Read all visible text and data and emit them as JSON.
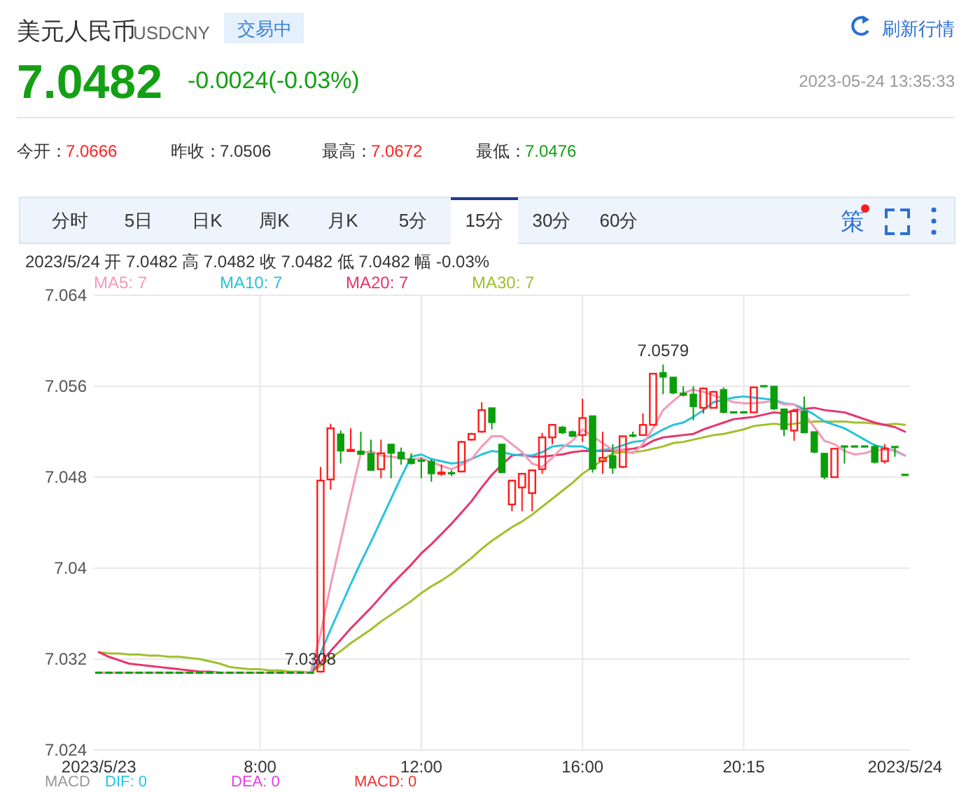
{
  "chart_data": {
    "type": "candlestick",
    "annotations": [
      "美元人民币",
      "USDCNY",
      "交易中",
      "刷新行情",
      "7.0482",
      "-0.0024(-0.03%)",
      "2023-05-24 13:35:33",
      "今开：",
      "7.0666",
      "昨收：",
      "7.0506",
      "最高：",
      "7.0672",
      "最低：",
      "7.0476",
      "分时",
      "5日",
      "日K",
      "周K",
      "月K",
      "5分",
      "15分",
      "30分",
      "60分",
      "策",
      "2023/5/24 开 7.0482 高 7.0482 收 7.0482 低 7.0482 幅 -0.03%",
      "MACD",
      "DIF: 0",
      "DEA: 0",
      "MACD: 0",
      {
        "text": "7.0579",
        "y": 7.0579
      },
      {
        "text": "7.0308",
        "y": 7.0308
      }
    ],
    "categories": [
      "2023/5/23",
      null,
      null,
      null,
      null,
      null,
      null,
      null,
      null,
      null,
      null,
      null,
      null,
      null,
      null,
      null,
      "8:00",
      null,
      null,
      null,
      null,
      null,
      null,
      null,
      null,
      null,
      null,
      null,
      null,
      null,
      null,
      null,
      "12:00",
      null,
      null,
      null,
      null,
      null,
      null,
      null,
      null,
      null,
      null,
      null,
      null,
      null,
      null,
      null,
      "16:00",
      null,
      null,
      null,
      null,
      null,
      null,
      null,
      null,
      null,
      null,
      null,
      null,
      null,
      null,
      null,
      "20:15",
      null,
      null,
      null,
      null,
      null,
      null,
      null,
      null,
      null,
      null,
      null,
      null,
      null,
      null,
      null,
      "2023/5/24"
    ],
    "ohlc": [
      [
        7.0308,
        7.0308,
        7.0308,
        7.0308
      ],
      [
        7.0308,
        7.0308,
        7.0308,
        7.0308
      ],
      [
        7.0308,
        7.0308,
        7.0308,
        7.0308
      ],
      [
        7.0308,
        7.0308,
        7.0308,
        7.0308
      ],
      [
        7.0308,
        7.0308,
        7.0308,
        7.0308
      ],
      [
        7.0308,
        7.0308,
        7.0308,
        7.0308
      ],
      [
        7.0308,
        7.0308,
        7.0308,
        7.0308
      ],
      [
        7.0308,
        7.0308,
        7.0308,
        7.0308
      ],
      [
        7.0308,
        7.0308,
        7.0308,
        7.0308
      ],
      [
        7.0308,
        7.0308,
        7.0308,
        7.0308
      ],
      [
        7.0308,
        7.0308,
        7.0308,
        7.0308
      ],
      [
        7.0308,
        7.0308,
        7.0308,
        7.0308
      ],
      [
        7.0308,
        7.0308,
        7.0308,
        7.0308
      ],
      [
        7.0308,
        7.0308,
        7.0308,
        7.0308
      ],
      [
        7.0308,
        7.0308,
        7.0308,
        7.0308
      ],
      [
        7.0308,
        7.0308,
        7.0308,
        7.0308
      ],
      [
        7.0308,
        7.0308,
        7.0308,
        7.0308
      ],
      [
        7.0308,
        7.0308,
        7.0308,
        7.0308
      ],
      [
        7.0308,
        7.0308,
        7.0308,
        7.0308
      ],
      [
        7.0308,
        7.0308,
        7.0308,
        7.0308
      ],
      [
        7.0308,
        7.0308,
        7.0308,
        7.0308
      ],
      [
        7.0308,
        7.0308,
        7.0308,
        7.0308
      ],
      [
        7.0309,
        7.0489,
        7.0308,
        7.0477
      ],
      [
        7.0478,
        7.0527,
        7.0469,
        7.0523
      ],
      [
        7.0518,
        7.0521,
        7.0492,
        7.0503
      ],
      [
        7.0503,
        7.0523,
        7.0503,
        7.0504
      ],
      [
        7.0503,
        7.052,
        7.05,
        7.05
      ],
      [
        7.0501,
        7.0513,
        7.0486,
        7.0486
      ],
      [
        7.0487,
        7.0513,
        7.0479,
        7.0501
      ],
      [
        7.0509,
        7.0509,
        7.0479,
        7.0501
      ],
      [
        7.0502,
        7.0506,
        7.0491,
        7.0496
      ],
      [
        7.0496,
        7.0501,
        7.0491,
        7.0492
      ],
      [
        7.0495,
        7.0497,
        7.0479,
        7.0494
      ],
      [
        7.0494,
        7.0496,
        7.0476,
        7.0483
      ],
      [
        7.0483,
        7.0491,
        7.0481,
        7.0484
      ],
      [
        7.0484,
        7.0486,
        7.0481,
        7.0483
      ],
      [
        7.0485,
        7.0512,
        7.0484,
        7.0511
      ],
      [
        7.0513,
        7.0519,
        7.0512,
        7.0518
      ],
      [
        7.052,
        7.0546,
        7.0519,
        7.0539
      ],
      [
        7.0541,
        7.0541,
        7.0522,
        7.0528
      ],
      [
        7.0509,
        7.0509,
        7.0484,
        7.0484
      ],
      [
        7.0456,
        7.0477,
        7.045,
        7.0477
      ],
      [
        7.0471,
        7.0483,
        7.045,
        7.0483
      ],
      [
        7.0466,
        7.0486,
        7.045,
        7.0486
      ],
      [
        7.0487,
        7.0519,
        7.0483,
        7.0515
      ],
      [
        7.0515,
        7.0526,
        7.0509,
        7.0526
      ],
      [
        7.0524,
        7.0525,
        7.0518,
        7.0519
      ],
      [
        7.052,
        7.0521,
        7.0515,
        7.0516
      ],
      [
        7.0517,
        7.0549,
        7.0511,
        7.0532
      ],
      [
        7.0534,
        7.0534,
        7.0484,
        7.0487
      ],
      [
        7.0494,
        7.052,
        7.0483,
        7.0497
      ],
      [
        7.0499,
        7.0509,
        7.0483,
        7.0488
      ],
      [
        7.0489,
        7.0516,
        7.0488,
        7.0516
      ],
      [
        7.0517,
        7.052,
        7.0515,
        7.0516
      ],
      [
        7.0517,
        7.0536,
        7.0517,
        7.0526
      ],
      [
        7.0526,
        7.0571,
        7.0526,
        7.0571
      ],
      [
        7.0572,
        7.0579,
        7.0553,
        7.0568
      ],
      [
        7.0568,
        7.0568,
        7.0553,
        7.0554
      ],
      [
        7.0554,
        7.056,
        7.0551,
        7.0552
      ],
      [
        7.0553,
        7.056,
        7.053,
        7.0542
      ],
      [
        7.0541,
        7.0559,
        7.0536,
        7.0558
      ],
      [
        7.0541,
        7.0556,
        7.0541,
        7.0555
      ],
      [
        7.0557,
        7.0559,
        7.0536,
        7.0537
      ],
      [
        7.0537,
        7.0537,
        7.0537,
        7.0537
      ],
      [
        7.0537,
        7.0537,
        7.0537,
        7.0537
      ],
      [
        7.0537,
        7.0559,
        7.0537,
        7.0559
      ],
      [
        7.056,
        7.056,
        7.056,
        7.056
      ],
      [
        7.056,
        7.056,
        7.0539,
        7.054
      ],
      [
        7.054,
        7.054,
        7.0516,
        7.0522
      ],
      [
        7.0521,
        7.054,
        7.0512,
        7.0538
      ],
      [
        7.0538,
        7.0551,
        7.0519,
        7.0519
      ],
      [
        7.052,
        7.052,
        7.0501,
        7.0502
      ],
      [
        7.0501,
        7.0501,
        7.0478,
        7.048
      ],
      [
        7.048,
        7.0505,
        7.048,
        7.0505
      ],
      [
        7.0507,
        7.0507,
        7.0492,
        7.0507
      ],
      [
        7.0507,
        7.0507,
        7.0507,
        7.0507
      ],
      [
        7.0507,
        7.0507,
        7.0507,
        7.0507
      ],
      [
        7.0507,
        7.0509,
        7.0492,
        7.0493
      ],
      [
        7.0494,
        7.0509,
        7.0492,
        7.0505
      ],
      [
        7.0507,
        7.0507,
        7.0498,
        7.0506
      ],
      [
        7.0482,
        7.0482,
        7.0482,
        7.0482
      ]
    ],
    "series": [
      {
        "name": "MA5: 7",
        "type": "line",
        "color": "#f59ab6",
        "values": [
          7.0308,
          7.0308,
          7.0308,
          7.0308,
          7.0308,
          7.0308,
          7.0308,
          7.0308,
          7.0308,
          7.0308,
          7.0308,
          7.0308,
          7.0308,
          7.0308,
          7.0308,
          7.0308,
          7.0308,
          7.0308,
          7.0308,
          7.0308,
          7.0308,
          7.0308,
          7.0342,
          7.0385,
          7.0424,
          7.0463,
          7.0501,
          7.0503,
          7.0499,
          7.0498,
          7.0497,
          7.0495,
          7.0497,
          7.0493,
          7.049,
          7.0487,
          7.0491,
          7.0496,
          7.0507,
          7.0516,
          7.0516,
          7.0509,
          7.0502,
          7.0492,
          7.0489,
          7.0497,
          7.0506,
          7.0512,
          7.0522,
          7.0516,
          7.051,
          7.0504,
          7.0504,
          7.0501,
          7.0509,
          7.0523,
          7.0539,
          7.0547,
          7.0554,
          7.0557,
          7.0555,
          7.0552,
          7.0549,
          7.0546,
          7.0545,
          7.0545,
          7.0546,
          7.0547,
          7.0544,
          7.0544,
          7.0536,
          7.0524,
          7.0512,
          7.0509,
          7.0503,
          7.05,
          7.0501,
          7.0504,
          7.0504,
          7.0504,
          7.0499
        ]
      },
      {
        "name": "MA10: 7",
        "type": "line",
        "color": "#26c3dc",
        "values": [
          null,
          null,
          null,
          null,
          null,
          null,
          null,
          null,
          null,
          null,
          null,
          null,
          null,
          null,
          null,
          null,
          null,
          null,
          null,
          null,
          null,
          7.0308,
          7.0325,
          7.0346,
          7.0366,
          7.0386,
          7.0405,
          7.0423,
          7.0442,
          7.0461,
          7.048,
          7.0498,
          7.05,
          7.0496,
          7.0494,
          7.0492,
          7.0493,
          7.0496,
          7.05,
          7.0503,
          7.0502,
          7.05,
          7.0499,
          7.0499,
          7.0502,
          7.0507,
          7.0508,
          7.0507,
          7.0507,
          7.0503,
          7.0504,
          7.0505,
          7.0508,
          7.0511,
          7.0512,
          7.0517,
          7.0522,
          7.0526,
          7.0528,
          7.0533,
          7.0539,
          7.0546,
          7.0548,
          7.055,
          7.0551,
          7.055,
          7.0549,
          7.0548,
          7.0545,
          7.0544,
          7.054,
          7.0535,
          7.0529,
          7.0526,
          7.0523,
          7.0518,
          7.0513,
          7.0508,
          7.0506,
          7.0503,
          7.0499
        ]
      },
      {
        "name": "MA20: 7",
        "type": "line",
        "color": "#e8336c",
        "values": [
          7.0326,
          7.0322,
          7.0319,
          7.0316,
          7.0315,
          7.0314,
          7.0313,
          7.0312,
          7.0311,
          7.031,
          7.0309,
          7.0309,
          7.0308,
          null,
          null,
          null,
          null,
          null,
          null,
          null,
          null,
          7.0308,
          7.0317,
          7.0327,
          7.0337,
          7.0347,
          7.0356,
          7.0365,
          7.0375,
          7.0385,
          7.0394,
          7.0403,
          7.0413,
          7.0421,
          7.043,
          7.0439,
          7.0449,
          7.0459,
          7.0471,
          7.0482,
          7.0491,
          7.0499,
          7.05,
          7.0498,
          7.0498,
          7.0499,
          7.05,
          7.0502,
          7.0503,
          7.0503,
          7.0503,
          7.0503,
          7.0504,
          7.0505,
          7.0507,
          7.0512,
          7.0515,
          7.0516,
          7.0517,
          7.0518,
          7.0522,
          7.0525,
          7.0528,
          7.0531,
          7.0532,
          7.0533,
          7.0535,
          7.0537,
          7.0536,
          7.0539,
          7.054,
          7.0541,
          7.0539,
          7.0538,
          7.0537,
          7.0534,
          7.0531,
          7.0528,
          7.0526,
          7.0524,
          7.052
        ]
      },
      {
        "name": "MA30: 7",
        "type": "line",
        "color": "#a0c02a",
        "values": [
          7.0326,
          7.0325,
          7.0325,
          7.0324,
          7.0324,
          7.0323,
          7.0323,
          7.0322,
          7.0322,
          7.0321,
          7.032,
          7.0318,
          7.0316,
          7.0313,
          7.0312,
          7.0311,
          7.0311,
          7.031,
          7.031,
          7.0309,
          7.0309,
          7.0308,
          7.0314,
          7.0321,
          7.0327,
          7.0334,
          7.034,
          7.0346,
          7.0353,
          7.0359,
          7.0365,
          7.0371,
          7.0378,
          7.0384,
          7.0389,
          7.0395,
          7.0402,
          7.0409,
          7.0417,
          7.0424,
          7.043,
          7.0436,
          7.0441,
          7.0447,
          7.0454,
          7.0461,
          7.0468,
          7.0475,
          7.0483,
          7.0489,
          7.0495,
          7.0501,
          7.0502,
          7.0502,
          7.0503,
          7.0505,
          7.0507,
          7.051,
          7.0511,
          7.0513,
          7.0515,
          7.0517,
          7.0518,
          7.052,
          7.0522,
          7.0525,
          7.0526,
          7.0527,
          7.0526,
          7.0527,
          7.0528,
          7.0529,
          7.0529,
          7.0529,
          7.0529,
          7.0528,
          7.0528,
          7.0527,
          7.0526,
          7.0527,
          7.0526
        ]
      }
    ],
    "ylim": [
      7.024,
      7.064
    ],
    "yticks": [
      7.064,
      7.056,
      7.048,
      7.04,
      7.032,
      7.024
    ],
    "grid": true,
    "legend": "top left"
  }
}
